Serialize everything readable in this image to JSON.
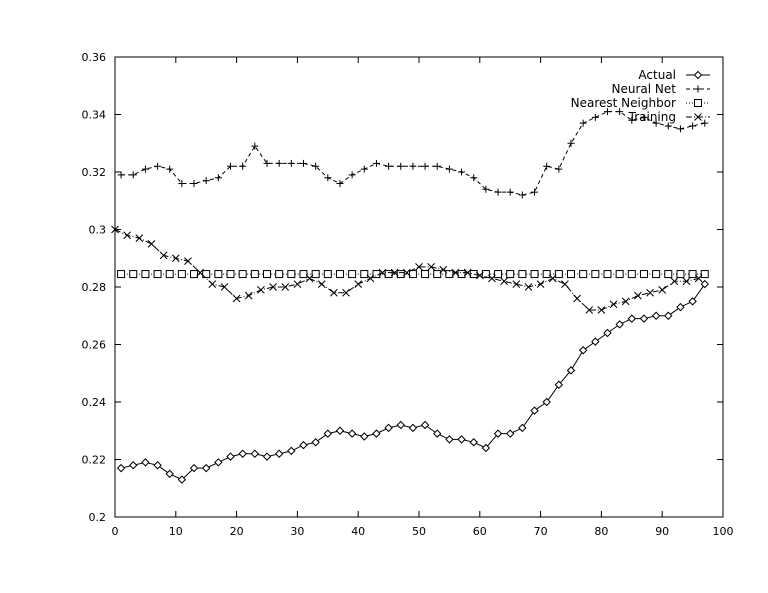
{
  "chart_data": {
    "type": "line",
    "title": "",
    "xlabel": "",
    "ylabel": "",
    "xlim": [
      0,
      100
    ],
    "ylim": [
      0.2,
      0.36
    ],
    "grid": false,
    "legend_position": "top-right",
    "xticks": [
      0,
      10,
      20,
      30,
      40,
      50,
      60,
      70,
      80,
      90,
      100
    ],
    "xtick_labels": [
      "0",
      "10",
      "20",
      "30",
      "40",
      "50",
      "60",
      "70",
      "80",
      "90",
      "100"
    ],
    "yticks": [
      0.2,
      0.22,
      0.24,
      0.26,
      0.28,
      0.3,
      0.32,
      0.34,
      0.36
    ],
    "ytick_labels": [
      "0.2",
      "0.22",
      "0.24",
      "0.26",
      "0.28",
      "0.3",
      "0.32",
      "0.34",
      "0.36"
    ],
    "series": [
      {
        "name": "Actual",
        "marker": "diamond",
        "line_style": "solid",
        "x": [
          1,
          3,
          5,
          7,
          9,
          11,
          13,
          15,
          17,
          19,
          21,
          23,
          25,
          27,
          29,
          31,
          33,
          35,
          37,
          39,
          41,
          43,
          45,
          47,
          49,
          51,
          53,
          55,
          57,
          59,
          61,
          63,
          65,
          67,
          69,
          71,
          73,
          75,
          77,
          79,
          81,
          83,
          85,
          87,
          89,
          91,
          93,
          95,
          97
        ],
        "values": [
          0.217,
          0.218,
          0.219,
          0.218,
          0.215,
          0.213,
          0.217,
          0.217,
          0.219,
          0.221,
          0.222,
          0.222,
          0.221,
          0.222,
          0.223,
          0.225,
          0.226,
          0.229,
          0.23,
          0.229,
          0.228,
          0.229,
          0.231,
          0.232,
          0.231,
          0.232,
          0.229,
          0.227,
          0.227,
          0.226,
          0.224,
          0.229,
          0.229,
          0.231,
          0.237,
          0.24,
          0.246,
          0.251,
          0.258,
          0.261,
          0.264,
          0.267,
          0.269,
          0.269,
          0.27,
          0.27,
          0.273,
          0.275,
          0.281
        ]
      },
      {
        "name": "Neural Net",
        "marker": "plus",
        "line_style": "dashed",
        "x": [
          1,
          3,
          5,
          7,
          9,
          11,
          13,
          15,
          17,
          19,
          21,
          23,
          25,
          27,
          29,
          31,
          33,
          35,
          37,
          39,
          41,
          43,
          45,
          47,
          49,
          51,
          53,
          55,
          57,
          59,
          61,
          63,
          65,
          67,
          69,
          71,
          73,
          75,
          77,
          79,
          81,
          83,
          85,
          87,
          89,
          91,
          93,
          95,
          97
        ],
        "values": [
          0.319,
          0.319,
          0.321,
          0.322,
          0.321,
          0.316,
          0.316,
          0.317,
          0.318,
          0.322,
          0.322,
          0.329,
          0.323,
          0.323,
          0.323,
          0.323,
          0.322,
          0.318,
          0.316,
          0.319,
          0.321,
          0.323,
          0.322,
          0.322,
          0.322,
          0.322,
          0.322,
          0.321,
          0.32,
          0.318,
          0.314,
          0.313,
          0.313,
          0.312,
          0.313,
          0.322,
          0.321,
          0.33,
          0.337,
          0.339,
          0.341,
          0.341,
          0.338,
          0.339,
          0.337,
          0.336,
          0.335,
          0.336,
          0.337
        ]
      },
      {
        "name": "Nearest Neighbor",
        "marker": "square",
        "line_style": "dotted",
        "x": [
          1,
          3,
          5,
          7,
          9,
          11,
          13,
          15,
          17,
          19,
          21,
          23,
          25,
          27,
          29,
          31,
          33,
          35,
          37,
          39,
          41,
          43,
          45,
          47,
          49,
          51,
          53,
          55,
          57,
          59,
          61,
          63,
          65,
          67,
          69,
          71,
          73,
          75,
          77,
          79,
          81,
          83,
          85,
          87,
          89,
          91,
          93,
          95,
          97
        ],
        "values": [
          0.2845,
          0.2845,
          0.2845,
          0.2845,
          0.2845,
          0.2845,
          0.2845,
          0.2845,
          0.2845,
          0.2845,
          0.2845,
          0.2845,
          0.2845,
          0.2845,
          0.2845,
          0.2845,
          0.2845,
          0.2845,
          0.2845,
          0.2845,
          0.2845,
          0.2845,
          0.2845,
          0.2845,
          0.2845,
          0.2845,
          0.2845,
          0.2845,
          0.2845,
          0.2845,
          0.2845,
          0.2845,
          0.2845,
          0.2845,
          0.2845,
          0.2845,
          0.2845,
          0.2845,
          0.2845,
          0.2845,
          0.2845,
          0.2845,
          0.2845,
          0.2845,
          0.2845,
          0.2845,
          0.2845,
          0.2845,
          0.2845
        ]
      },
      {
        "name": "Training",
        "marker": "cross",
        "line_style": "dash-dot",
        "x": [
          0,
          2,
          4,
          6,
          8,
          10,
          12,
          14,
          16,
          18,
          20,
          22,
          24,
          26,
          28,
          30,
          32,
          34,
          36,
          38,
          40,
          42,
          44,
          46,
          48,
          50,
          52,
          54,
          56,
          58,
          60,
          62,
          64,
          66,
          68,
          70,
          72,
          74,
          76,
          78,
          80,
          82,
          84,
          86,
          88,
          90,
          92,
          94,
          96
        ],
        "values": [
          0.3,
          0.298,
          0.297,
          0.295,
          0.291,
          0.29,
          0.289,
          0.285,
          0.281,
          0.28,
          0.276,
          0.277,
          0.279,
          0.28,
          0.28,
          0.281,
          0.283,
          0.281,
          0.278,
          0.278,
          0.281,
          0.283,
          0.285,
          0.285,
          0.285,
          0.287,
          0.287,
          0.286,
          0.285,
          0.285,
          0.284,
          0.283,
          0.282,
          0.281,
          0.28,
          0.281,
          0.283,
          0.281,
          0.276,
          0.272,
          0.272,
          0.274,
          0.275,
          0.277,
          0.278,
          0.279,
          0.282,
          0.282,
          0.283
        ]
      }
    ]
  }
}
